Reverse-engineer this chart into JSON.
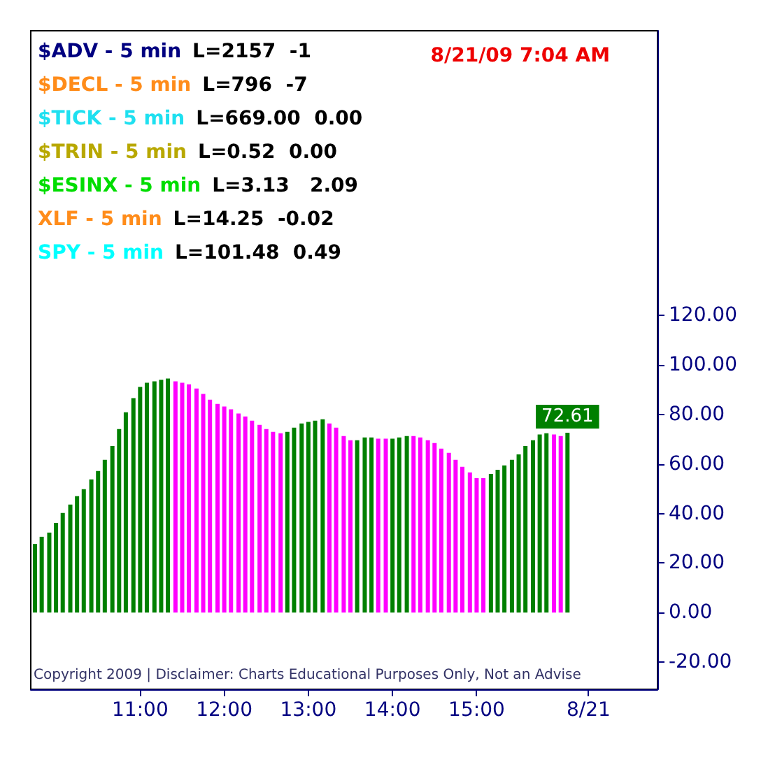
{
  "chart_data": {
    "type": "bar",
    "title": "8/21/09 7:04 AM",
    "annotations": [
      "$ADV - 5 min",
      "L=2157  -1",
      "$DECL - 5 min",
      "L=796  -7",
      "$TICK - 5 min",
      "L=669.00  0.00",
      "$TRIN - 5 min",
      "L=0.52  0.00",
      "$ESINX - 5 min",
      "L=3.13   2.09",
      "XLF - 5 min",
      "L=14.25  -0.02",
      "SPY - 5 min",
      "L=101.48  0.49",
      "Copyright 2009 | Disclaimer: Charts Educational Purposes Only, Not an Advise"
    ],
    "x": [
      9.75,
      9.83,
      9.92,
      10,
      10.08,
      10.17,
      10.25,
      10.33,
      10.42,
      10.5,
      10.58,
      10.67,
      10.75,
      10.83,
      10.92,
      11,
      11.08,
      11.17,
      11.25,
      11.33,
      11.42,
      11.5,
      11.58,
      11.67,
      11.75,
      11.83,
      11.92,
      12,
      12.08,
      12.17,
      12.25,
      12.33,
      12.42,
      12.5,
      12.58,
      12.67,
      12.75,
      12.83,
      12.92,
      13,
      13.08,
      13.17,
      13.25,
      13.33,
      13.42,
      13.5,
      13.58,
      13.67,
      13.75,
      13.83,
      13.92,
      14,
      14.08,
      14.17,
      14.25,
      14.33,
      14.42,
      14.5,
      14.58,
      14.67,
      14.75,
      14.83,
      14.92,
      15,
      15.08,
      15.17,
      15.25,
      15.33,
      15.42,
      15.5,
      15.58,
      15.67,
      15.75,
      15.83,
      15.92,
      16,
      16.08
    ],
    "values": [
      27.7,
      30.6,
      32.3,
      36.2,
      40.2,
      43.6,
      47.0,
      49.8,
      53.8,
      57.2,
      61.7,
      67.3,
      74.1,
      80.9,
      86.6,
      91.1,
      92.8,
      93.4,
      94.0,
      94.5,
      93.4,
      92.8,
      92.2,
      90.5,
      88.3,
      86.0,
      84.3,
      83.2,
      82.1,
      80.4,
      79.2,
      77.5,
      75.8,
      74.1,
      73.0,
      72.4,
      73.0,
      74.7,
      76.4,
      77.0,
      77.5,
      78.1,
      76.4,
      74.7,
      71.3,
      69.6,
      69.6,
      70.7,
      70.7,
      70.2,
      70.2,
      70.2,
      70.7,
      71.3,
      71.3,
      70.7,
      69.6,
      68.5,
      66.2,
      64.5,
      61.7,
      58.9,
      56.6,
      54.3,
      54.3,
      56.0,
      57.7,
      59.4,
      61.7,
      63.9,
      67.3,
      69.6,
      71.9,
      72.4,
      71.9,
      71.3,
      72.61
    ],
    "colors": [
      "#008000",
      "#008000",
      "#008000",
      "#008000",
      "#008000",
      "#008000",
      "#008000",
      "#008000",
      "#008000",
      "#008000",
      "#008000",
      "#008000",
      "#008000",
      "#008000",
      "#008000",
      "#008000",
      "#008000",
      "#008000",
      "#008000",
      "#008000",
      "#ff00ff",
      "#ff00ff",
      "#ff00ff",
      "#ff00ff",
      "#ff00ff",
      "#ff00ff",
      "#ff00ff",
      "#ff00ff",
      "#ff00ff",
      "#ff00ff",
      "#ff00ff",
      "#ff00ff",
      "#ff00ff",
      "#ff00ff",
      "#ff00ff",
      "#ff00ff",
      "#008000",
      "#008000",
      "#008000",
      "#008000",
      "#008000",
      "#008000",
      "#ff00ff",
      "#ff00ff",
      "#ff00ff",
      "#ff00ff",
      "#008000",
      "#008000",
      "#008000",
      "#ff00ff",
      "#ff00ff",
      "#008000",
      "#008000",
      "#008000",
      "#ff00ff",
      "#ff00ff",
      "#ff00ff",
      "#ff00ff",
      "#ff00ff",
      "#ff00ff",
      "#ff00ff",
      "#ff00ff",
      "#ff00ff",
      "#ff00ff",
      "#ff00ff",
      "#008000",
      "#008000",
      "#008000",
      "#008000",
      "#008000",
      "#008000",
      "#008000",
      "#008000",
      "#008000",
      "#ff00ff",
      "#ff00ff",
      "#008000"
    ],
    "value_labels": [
      null,
      null,
      null,
      null,
      null,
      null,
      null,
      null,
      null,
      null,
      null,
      null,
      null,
      null,
      null,
      null,
      null,
      null,
      null,
      null,
      null,
      null,
      null,
      null,
      null,
      null,
      null,
      null,
      null,
      null,
      null,
      null,
      null,
      null,
      null,
      null,
      null,
      null,
      null,
      null,
      null,
      null,
      null,
      null,
      null,
      null,
      null,
      null,
      null,
      null,
      null,
      null,
      null,
      null,
      null,
      null,
      null,
      null,
      null,
      null,
      null,
      null,
      null,
      null,
      null,
      null,
      null,
      null,
      null,
      null,
      null,
      null,
      null,
      null,
      null,
      null,
      "72.61"
    ],
    "xlim": [
      9.7,
      17.15
    ],
    "xticks": [
      {
        "value": 11,
        "label": "11:00"
      },
      {
        "value": 12,
        "label": "12:00"
      },
      {
        "value": 13,
        "label": "13:00"
      },
      {
        "value": 14,
        "label": "14:00"
      },
      {
        "value": 15,
        "label": "15:00"
      },
      {
        "value": 16.33,
        "label": "8/21"
      }
    ],
    "ylim": [
      -31,
      235
    ],
    "yticks": [
      {
        "value": -20,
        "label": "-20.00"
      },
      {
        "value": 0,
        "label": "0.00"
      },
      {
        "value": 20,
        "label": "20.00"
      },
      {
        "value": 40,
        "label": "40.00"
      },
      {
        "value": 60,
        "label": "60.00"
      },
      {
        "value": 80,
        "label": "80.00"
      },
      {
        "value": 100,
        "label": "100.00"
      },
      {
        "value": 120,
        "label": "120.00"
      }
    ],
    "grid": false
  }
}
